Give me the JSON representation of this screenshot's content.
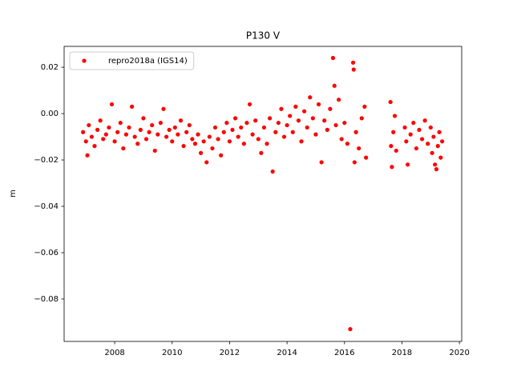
{
  "chart_data": {
    "type": "scatter",
    "title": "P130 V",
    "ylabel": "m",
    "xlim": [
      2006.24,
      2020.08
    ],
    "ylim": [
      -0.0983,
      0.029
    ],
    "xticks": [
      2008,
      2010,
      2012,
      2014,
      2016,
      2018,
      2020
    ],
    "yticks": [
      {
        "value": 0.02,
        "label": "0.02"
      },
      {
        "value": 0,
        "label": "0.00"
      },
      {
        "value": -0.02,
        "label": "−0.02"
      },
      {
        "value": -0.04,
        "label": "−0.04"
      },
      {
        "value": -0.06,
        "label": "−0.06"
      },
      {
        "value": -0.08,
        "label": "−0.08"
      }
    ],
    "legend": "upper left",
    "series": [
      {
        "name": "repro2018a (IGS14)",
        "color": "#ff0000",
        "x": [
          2006.9,
          2007.0,
          2007.05,
          2007.1,
          2007.2,
          2007.3,
          2007.4,
          2007.5,
          2007.6,
          2007.7,
          2007.8,
          2007.9,
          2008.0,
          2008.1,
          2008.2,
          2008.3,
          2008.4,
          2008.5,
          2008.6,
          2008.7,
          2008.8,
          2008.9,
          2009.0,
          2009.1,
          2009.2,
          2009.3,
          2009.4,
          2009.5,
          2009.6,
          2009.7,
          2009.8,
          2009.9,
          2010.0,
          2010.1,
          2010.2,
          2010.3,
          2010.4,
          2010.5,
          2010.6,
          2010.7,
          2010.8,
          2010.9,
          2011.0,
          2011.1,
          2011.2,
          2011.3,
          2011.4,
          2011.5,
          2011.6,
          2011.7,
          2011.8,
          2011.9,
          2012.0,
          2012.1,
          2012.2,
          2012.3,
          2012.4,
          2012.5,
          2012.6,
          2012.7,
          2012.8,
          2012.9,
          2013.0,
          2013.1,
          2013.2,
          2013.3,
          2013.4,
          2013.5,
          2013.6,
          2013.7,
          2013.8,
          2013.9,
          2014.0,
          2014.1,
          2014.2,
          2014.3,
          2014.4,
          2014.5,
          2014.6,
          2014.7,
          2014.8,
          2014.9,
          2015.0,
          2015.1,
          2015.2,
          2015.3,
          2015.4,
          2015.5,
          2015.6,
          2015.65,
          2015.7,
          2015.8,
          2015.9,
          2016.0,
          2016.1,
          2016.2,
          2016.3,
          2016.32,
          2016.35,
          2016.4,
          2016.5,
          2016.6,
          2016.7,
          2016.75,
          2017.6,
          2017.62,
          2017.65,
          2017.7,
          2017.75,
          2017.8,
          2018.1,
          2018.15,
          2018.2,
          2018.3,
          2018.4,
          2018.5,
          2018.6,
          2018.7,
          2018.8,
          2018.9,
          2019.0,
          2019.05,
          2019.1,
          2019.15,
          2019.2,
          2019.25,
          2019.3,
          2019.35,
          2019.4
        ],
        "values": [
          -0.008,
          -0.012,
          -0.018,
          -0.005,
          -0.01,
          -0.014,
          -0.007,
          -0.003,
          -0.011,
          -0.009,
          -0.006,
          0.004,
          -0.012,
          -0.008,
          -0.004,
          -0.015,
          -0.009,
          -0.006,
          0.003,
          -0.01,
          -0.013,
          -0.007,
          -0.002,
          -0.011,
          -0.008,
          -0.005,
          -0.016,
          -0.009,
          -0.004,
          0.002,
          -0.01,
          -0.007,
          -0.012,
          -0.006,
          -0.009,
          -0.003,
          -0.014,
          -0.008,
          -0.005,
          -0.011,
          -0.013,
          -0.009,
          -0.017,
          -0.012,
          -0.021,
          -0.01,
          -0.015,
          -0.006,
          -0.011,
          -0.018,
          -0.008,
          -0.004,
          -0.012,
          -0.007,
          -0.002,
          -0.01,
          -0.006,
          -0.013,
          -0.004,
          0.004,
          -0.009,
          -0.003,
          -0.011,
          -0.017,
          -0.006,
          -0.013,
          -0.002,
          -0.025,
          -0.008,
          -0.004,
          0.002,
          -0.01,
          -0.005,
          -0.001,
          -0.008,
          0.003,
          -0.003,
          -0.012,
          0.001,
          -0.006,
          0.007,
          -0.002,
          -0.009,
          0.004,
          -0.021,
          -0.003,
          -0.007,
          0.002,
          0.024,
          0.012,
          -0.005,
          0.006,
          -0.011,
          -0.004,
          -0.013,
          -0.093,
          0.022,
          0.019,
          -0.021,
          -0.008,
          -0.015,
          -0.002,
          0.003,
          -0.019,
          0.005,
          -0.014,
          -0.023,
          -0.008,
          -0.001,
          -0.016,
          -0.006,
          -0.012,
          -0.022,
          -0.009,
          -0.004,
          -0.015,
          -0.007,
          -0.011,
          -0.003,
          -0.013,
          -0.006,
          -0.017,
          -0.01,
          -0.022,
          -0.024,
          -0.014,
          -0.008,
          -0.019,
          -0.012
        ]
      }
    ]
  }
}
